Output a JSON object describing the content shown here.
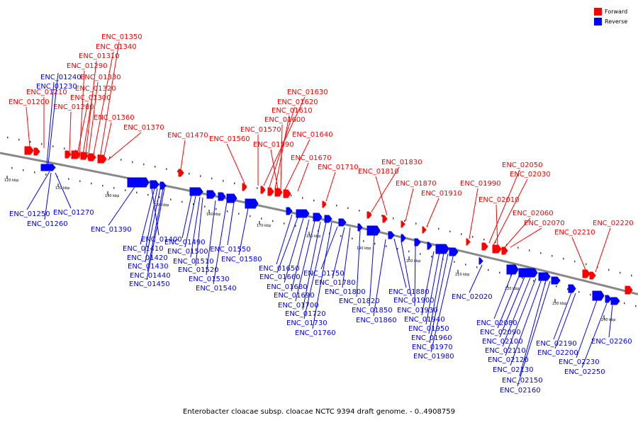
{
  "caption": "Enterobacter cloacae subsp. cloacae NCTC 9394 draft genome. - 0..4908759",
  "legend": [
    {
      "label": "Forward",
      "color": "#ff0000"
    },
    {
      "label": "Reverse",
      "color": "#0000ff"
    }
  ],
  "colors": {
    "forward": "#ff0000",
    "reverse": "#0000ff",
    "axis": "#888888"
  },
  "ticks": [
    "120 kbp",
    "130 kbp",
    "140 kbp",
    "150 kbp",
    "160 kbp",
    "170 kbp",
    "180 kbp",
    "190 kbp",
    "200 kbp",
    "210 kbp",
    "220 kbp",
    "230 kbp",
    "240 kbp"
  ],
  "forward_labels": [
    "ENC_01350",
    "ENC_01340",
    "ENC_01310",
    "ENC_01290",
    "ENC_01330",
    "ENC_01320",
    "ENC_01210",
    "ENC_01300",
    "ENC_01200",
    "ENC_01280",
    "ENC_01360",
    "ENC_01370",
    "ENC_01470",
    "ENC_01560",
    "ENC_01630",
    "ENC_01620",
    "ENC_01610",
    "ENC_01600",
    "ENC_01570",
    "ENC_01640",
    "ENC_01590",
    "ENC_01670",
    "ENC_01710",
    "ENC_01830",
    "ENC_01810",
    "ENC_01870",
    "ENC_01910",
    "ENC_01990",
    "ENC_02050",
    "ENC_02030",
    "ENC_02010",
    "ENC_02060",
    "ENC_02070",
    "ENC_02210",
    "ENC_02220"
  ],
  "reverse_labels": [
    "ENC_01240",
    "ENC_01230",
    "ENC_01250",
    "ENC_01270",
    "ENC_01260",
    "ENC_01390",
    "ENC_01400",
    "ENC_01410",
    "ENC_01420",
    "ENC_01430",
    "ENC_01440",
    "ENC_01450",
    "ENC_01490",
    "ENC_01500",
    "ENC_01510",
    "ENC_01520",
    "ENC_01530",
    "ENC_01540",
    "ENC_01550",
    "ENC_01580",
    "ENC_01650",
    "ENC_01660",
    "ENC_01680",
    "ENC_01690",
    "ENC_01700",
    "ENC_01720",
    "ENC_01730",
    "ENC_01760",
    "ENC_01750",
    "ENC_01780",
    "ENC_01800",
    "ENC_01820",
    "ENC_01850",
    "ENC_01860",
    "ENC_01880",
    "ENC_01900",
    "ENC_01930",
    "ENC_01940",
    "ENC_01950",
    "ENC_01960",
    "ENC_01970",
    "ENC_01980",
    "ENC_02020",
    "ENC_02080",
    "ENC_02090",
    "ENC_02100",
    "ENC_02110",
    "ENC_02120",
    "ENC_02130",
    "ENC_02150",
    "ENC_02160",
    "ENC_02190",
    "ENC_02200",
    "ENC_02230",
    "ENC_02250",
    "ENC_02260"
  ]
}
